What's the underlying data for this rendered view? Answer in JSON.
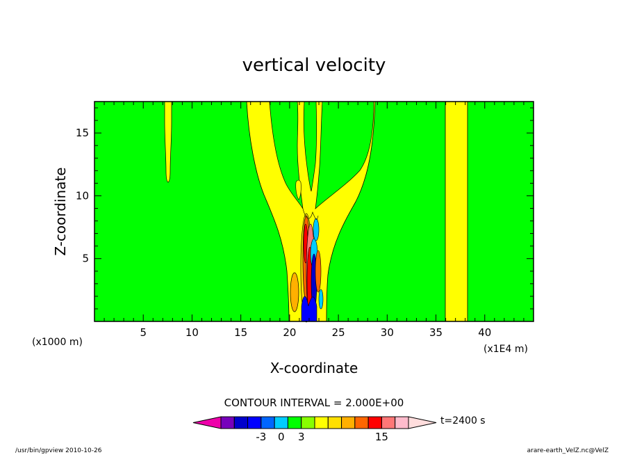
{
  "chart_data": {
    "type": "heatmap",
    "title": "vertical velocity",
    "xlabel": "X-coordinate",
    "ylabel": "Z-coordinate",
    "x_units_left": "(x1000 m)",
    "x_units_right": "(x1E4 m)",
    "xlim": [
      0,
      45
    ],
    "ylim": [
      0,
      17.5
    ],
    "x_ticks": [
      5,
      10,
      15,
      20,
      25,
      30,
      35,
      40
    ],
    "y_ticks": [
      5,
      10,
      15
    ],
    "grid": false,
    "contour_interval": "CONTOUR INTERVAL = 2.000E+00",
    "time_label": "t=2400 s",
    "footer_left": "/usr/bin/gpview  2010-10-26",
    "footer_right": "arare-earth_VelZ.nc@VelZ",
    "colors": {
      "background_field": "#00ff00",
      "positive_band": "#ffff00",
      "strong_positive": "#ff8c00",
      "negative": "#00c8ff"
    },
    "colorbar": {
      "tick_labels": [
        "-3",
        "0",
        "3",
        "15"
      ],
      "tick_values": [
        -3,
        0,
        3,
        15
      ],
      "colors": [
        "#ee00aa",
        "#7700bb",
        "#0000cc",
        "#0000ff",
        "#0066ff",
        "#00ccff",
        "#00ff00",
        "#88ff00",
        "#ffff00",
        "#ffe000",
        "#ffb000",
        "#ff6600",
        "#ff0000",
        "#ff7777",
        "#ffbbcc",
        "#ffdddd"
      ],
      "bounds": [
        -11,
        -9,
        -7,
        -5,
        -3,
        -1,
        1,
        3,
        5,
        7,
        9,
        11,
        13,
        15,
        17,
        19,
        21
      ]
    },
    "features": [
      {
        "name": "thin plume near x=7.5",
        "x_center": 7.6,
        "z_bottom": 11.4,
        "z_top": 17.5,
        "value": "positive"
      },
      {
        "name": "central V-shaped updraft region",
        "x_center": 22,
        "z_bottom": 0,
        "z_top": 17.5,
        "value": "positive"
      },
      {
        "name": "vertical band near x=37",
        "x_min": 36.2,
        "x_max": 38.3,
        "z_bottom": 0,
        "z_top": 17.5,
        "value": "positive"
      },
      {
        "name": "convective core",
        "x_min": 20.5,
        "x_max": 23.5,
        "z_bottom": 0,
        "z_top": 9,
        "value": "mixed strong"
      }
    ]
  }
}
